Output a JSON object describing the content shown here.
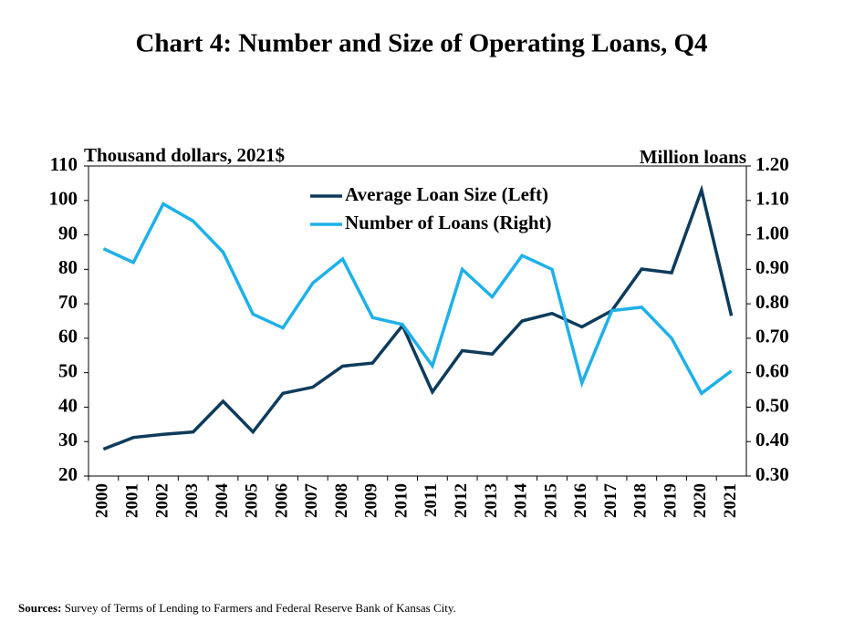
{
  "chart_data": {
    "type": "line",
    "title": "Chart 4: Number and Size of Operating Loans, Q4",
    "y_label": "Thousand dollars, 2021$",
    "y2_label": "Million loans",
    "categories": [
      "2000",
      "2001",
      "2002",
      "2003",
      "2004",
      "2005",
      "2006",
      "2007",
      "2008",
      "2009",
      "2010",
      "2011",
      "2012",
      "2013",
      "2014",
      "2015",
      "2016",
      "2017",
      "2018",
      "2019",
      "2020",
      "2021"
    ],
    "series": [
      {
        "name": "Average Loan Size (Left)",
        "color": "#0e3b5b",
        "values": [
          27.8,
          31.2,
          32.1,
          32.8,
          41.7,
          32.8,
          44.0,
          45.8,
          51.9,
          52.8,
          63.7,
          44.4,
          56.4,
          55.4,
          65.0,
          67.2,
          63.3,
          68.0,
          80.1,
          79.0,
          103.0,
          66.5
        ]
      },
      {
        "name": "Number of Loans (Right)",
        "color": "#1fb0e8",
        "axis": "y2",
        "values": [
          0.96,
          0.92,
          1.09,
          1.04,
          0.95,
          0.77,
          0.73,
          0.86,
          0.93,
          0.76,
          0.74,
          0.62,
          0.9,
          0.82,
          0.94,
          0.9,
          0.57,
          0.78,
          0.79,
          0.7,
          0.54,
          0.605
        ]
      }
    ],
    "ylim": [
      20,
      110
    ],
    "yticks": [
      20,
      30,
      40,
      50,
      60,
      70,
      80,
      90,
      100,
      110
    ],
    "y2lim": [
      0.3,
      1.2
    ],
    "y2ticks": [
      {
        "value": 0.3,
        "label": "0.30"
      },
      {
        "value": 0.4,
        "label": "0.40"
      },
      {
        "value": 0.5,
        "label": "0.50"
      },
      {
        "value": 0.6,
        "label": "0.60"
      },
      {
        "value": 0.7,
        "label": "0.70"
      },
      {
        "value": 0.8,
        "label": "0.80"
      },
      {
        "value": 0.9,
        "label": "0.90"
      },
      {
        "value": 1.0,
        "label": "1.00"
      },
      {
        "value": 1.1,
        "label": "1.10"
      },
      {
        "value": 1.2,
        "label": "1.20"
      }
    ],
    "grid": false,
    "legend": "top",
    "source": {
      "label": "Sources:",
      "text": "Survey of Terms of Lending to Farmers and Federal Reserve Bank of Kansas City."
    }
  }
}
